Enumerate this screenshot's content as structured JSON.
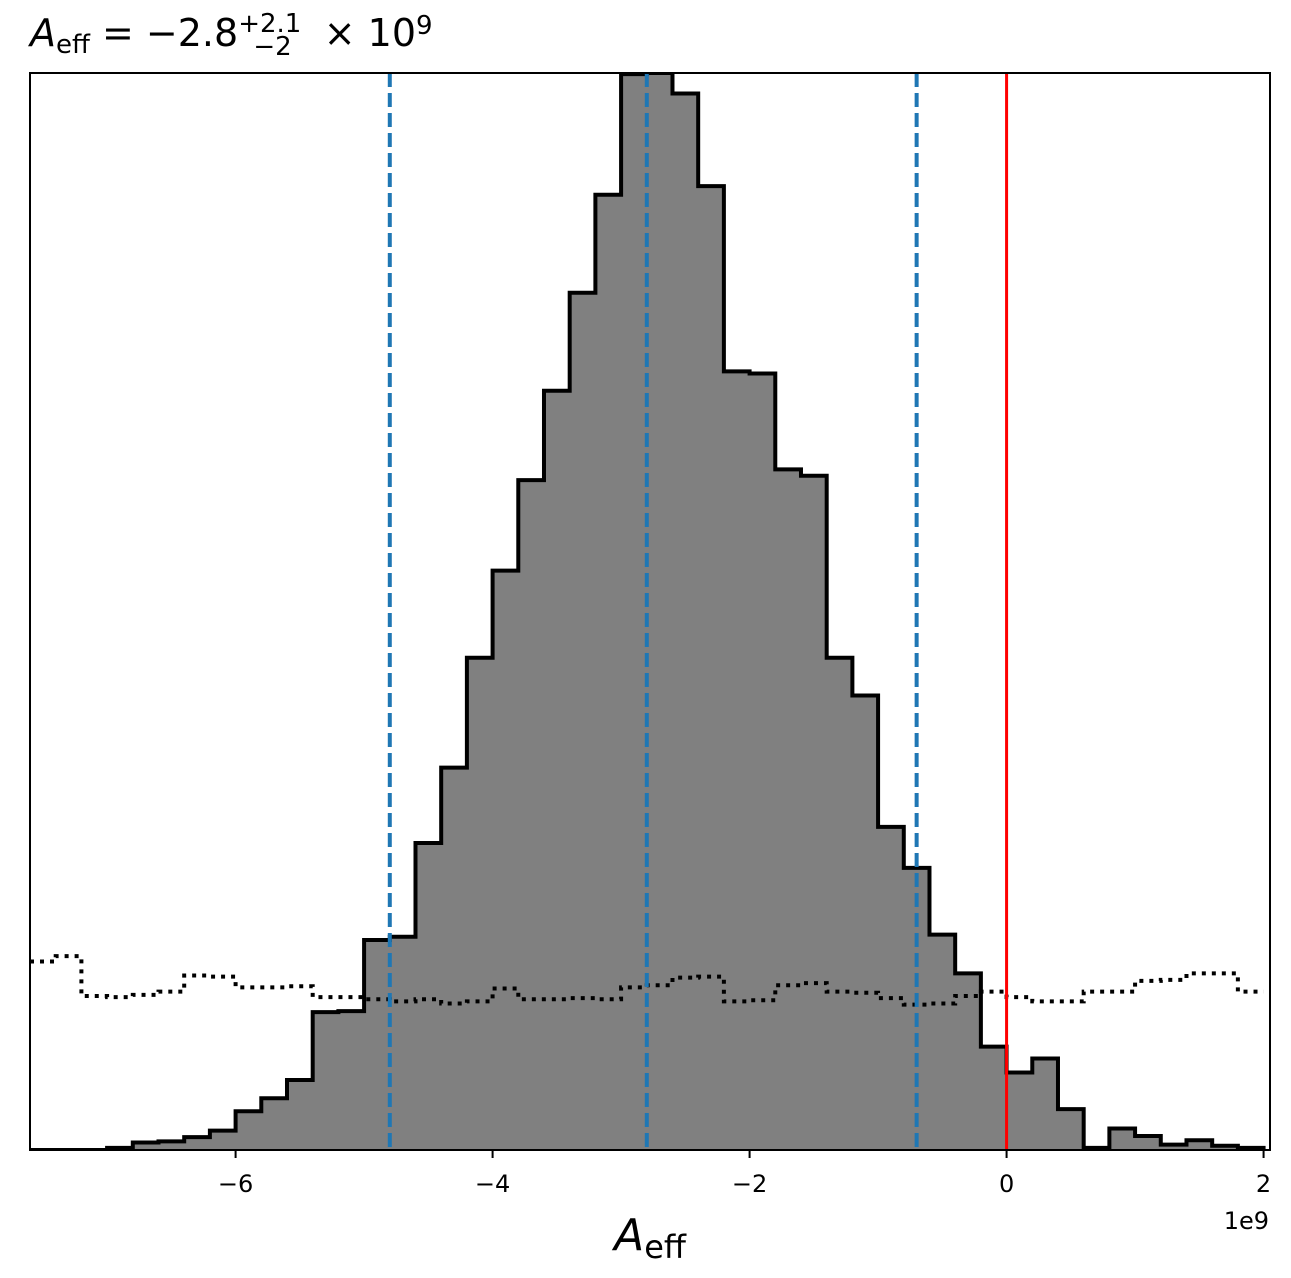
{
  "chart_data": {
    "type": "histogram",
    "title": {
      "symbol": "A",
      "symbol_sub": "eff",
      "equals": " = −2.8",
      "sup": "+2.1",
      "sub": "−2",
      "tail": " × 10",
      "exp": "9"
    },
    "xlabel": {
      "symbol": "A",
      "sub": "eff"
    },
    "x_offset_label": "1e9",
    "x_scale": 1000000000,
    "xlim": [
      -7.6,
      2.05
    ],
    "ylim": [
      0,
      1.0
    ],
    "x_ticks": [
      -6,
      -4,
      -2,
      0,
      2
    ],
    "x_tick_labels": [
      "−6",
      "−4",
      "−2",
      "0",
      "2"
    ],
    "colors": {
      "posterior_fill": "#808080",
      "posterior_edge": "#000000",
      "quantile_lines": "#1f77b4",
      "truth_line": "#ff0000",
      "prior_line": "#000000"
    },
    "posterior": {
      "bin_edges": [
        -7.6,
        -7.4,
        -7.2,
        -7.0,
        -6.8,
        -6.6,
        -6.4,
        -6.2,
        -6.0,
        -5.8,
        -5.6,
        -5.4,
        -5.2,
        -5.0,
        -4.8,
        -4.6,
        -4.4,
        -4.2,
        -4.0,
        -3.8,
        -3.6,
        -3.4,
        -3.2,
        -3.0,
        -2.8,
        -2.6,
        -2.4,
        -2.2,
        -2.0,
        -1.8,
        -1.6,
        -1.4,
        -1.2,
        -1.0,
        -0.8,
        -0.6,
        -0.4,
        -0.2,
        0.0,
        0.2,
        0.4,
        0.6,
        0.8,
        1.0,
        1.2,
        1.4,
        1.6,
        1.8,
        2.0
      ],
      "heights": [
        0.0,
        0.0,
        0.0,
        0.002,
        0.007,
        0.008,
        0.012,
        0.018,
        0.036,
        0.048,
        0.065,
        0.128,
        0.129,
        0.195,
        0.198,
        0.285,
        0.355,
        0.457,
        0.538,
        0.622,
        0.705,
        0.796,
        0.887,
        0.999,
        1.0,
        0.981,
        0.895,
        0.723,
        0.721,
        0.632,
        0.626,
        0.457,
        0.422,
        0.3,
        0.262,
        0.2,
        0.164,
        0.096,
        0.072,
        0.085,
        0.038,
        0.002,
        0.02,
        0.013,
        0.005,
        0.009,
        0.004,
        0.002
      ]
    },
    "prior": {
      "bin_edges": [
        -7.6,
        -7.4,
        -7.2,
        -7.0,
        -6.8,
        -6.6,
        -6.4,
        -6.2,
        -6.0,
        -5.8,
        -5.6,
        -5.4,
        -5.2,
        -5.0,
        -4.8,
        -4.6,
        -4.4,
        -4.2,
        -4.0,
        -3.8,
        -3.6,
        -3.4,
        -3.2,
        -3.0,
        -2.8,
        -2.6,
        -2.4,
        -2.2,
        -2.0,
        -1.8,
        -1.6,
        -1.4,
        -1.2,
        -1.0,
        -0.8,
        -0.6,
        -0.4,
        -0.2,
        0.0,
        0.2,
        0.4,
        0.6,
        0.8,
        1.0,
        1.2,
        1.4,
        1.6,
        1.8,
        2.0
      ],
      "heights": [
        0.175,
        0.18,
        0.143,
        0.142,
        0.144,
        0.147,
        0.162,
        0.161,
        0.151,
        0.151,
        0.152,
        0.142,
        0.142,
        0.14,
        0.138,
        0.14,
        0.136,
        0.138,
        0.15,
        0.14,
        0.14,
        0.141,
        0.14,
        0.151,
        0.153,
        0.16,
        0.161,
        0.138,
        0.139,
        0.153,
        0.155,
        0.147,
        0.146,
        0.141,
        0.135,
        0.136,
        0.143,
        0.147,
        0.142,
        0.138,
        0.138,
        0.147,
        0.147,
        0.157,
        0.158,
        0.164,
        0.164,
        0.147
      ]
    },
    "quantile_lines": [
      -4.8,
      -2.8,
      -0.7
    ],
    "truth_line": 0.0
  }
}
